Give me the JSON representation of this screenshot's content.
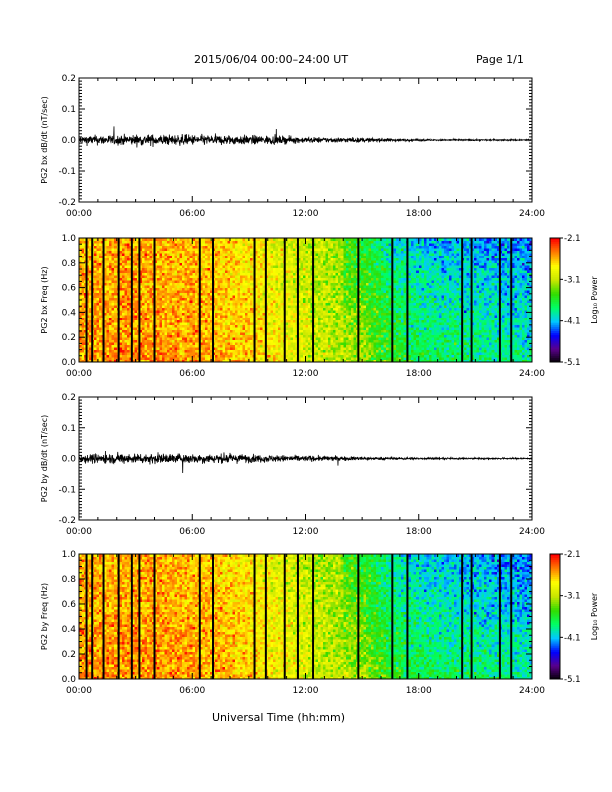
{
  "header": {
    "title": "2015/06/04  00:00–24:00 UT",
    "page": "Page 1/1"
  },
  "xlabel": "Universal Time (hh:mm)",
  "colors": {
    "trace": "#000000",
    "colormap": [
      "#000000",
      "#5a008c",
      "#0000ff",
      "#00c8ff",
      "#00ff64",
      "#32dc00",
      "#c8e600",
      "#ffff00",
      "#ff8000",
      "#ff0000"
    ]
  },
  "chart_data": [
    {
      "type": "line",
      "ylabel": "PG2 bx dB/dt (nT/sec)",
      "xlim_hours": [
        0,
        24
      ],
      "x_ticks": [
        "00:00",
        "06:00",
        "12:00",
        "18:00",
        "24:00"
      ],
      "ylim": [
        -0.2,
        0.2
      ],
      "y_ticks": [
        "-0.2",
        "-0.1",
        "0.0",
        "0.1",
        "0.2"
      ],
      "amplitude_envelope": {
        "x_hours": [
          0,
          2,
          4,
          6,
          8,
          10,
          12,
          14,
          16,
          18,
          20,
          22,
          24
        ],
        "amplitude": [
          0.025,
          0.028,
          0.03,
          0.028,
          0.027,
          0.024,
          0.016,
          0.014,
          0.01,
          0.005,
          0.004,
          0.004,
          0.004
        ]
      }
    },
    {
      "type": "heatmap",
      "ylabel": "PG2 bx Freq (Hz)",
      "xlim_hours": [
        0,
        24
      ],
      "x_ticks": [
        "00:00",
        "06:00",
        "12:00",
        "18:00",
        "24:00"
      ],
      "ylim": [
        0,
        1
      ],
      "y_ticks": [
        "0.0",
        "0.2",
        "0.4",
        "0.6",
        "0.8",
        "1.0"
      ],
      "colorbar": {
        "label": "Log₁₀ Power",
        "range": [
          -5.1,
          -2.1
        ],
        "ticks": [
          "-2.1",
          "-3.1",
          "-4.1",
          "-5.1"
        ]
      },
      "mean_log_power": {
        "x_hours": [
          0,
          3,
          6,
          9,
          11,
          13,
          15,
          16.5,
          18,
          21,
          24
        ],
        "values": [
          -2.5,
          -2.45,
          -2.5,
          -2.65,
          -2.85,
          -3.05,
          -3.15,
          -3.5,
          -3.65,
          -3.75,
          -3.85
        ]
      },
      "vertical_lines_hours": [
        0.4,
        0.7,
        1.3,
        2.1,
        2.8,
        3.2,
        4.0,
        6.4,
        7.1,
        9.3,
        9.9,
        10.9,
        11.6,
        12.4,
        14.8,
        16.6,
        17.4,
        20.3,
        20.8,
        22.3,
        22.9
      ]
    },
    {
      "type": "line",
      "ylabel": "PG2 by dB/dt (nT/sec)",
      "xlim_hours": [
        0,
        24
      ],
      "x_ticks": [
        "00:00",
        "06:00",
        "12:00",
        "18:00",
        "24:00"
      ],
      "ylim": [
        -0.2,
        0.2
      ],
      "y_ticks": [
        "-0.2",
        "-0.1",
        "0.0",
        "0.1",
        "0.2"
      ],
      "amplitude_envelope": {
        "x_hours": [
          0,
          2,
          4,
          6,
          8,
          10,
          12,
          14,
          16,
          18,
          20,
          22,
          24
        ],
        "amplitude": [
          0.025,
          0.028,
          0.028,
          0.026,
          0.025,
          0.02,
          0.016,
          0.012,
          0.008,
          0.005,
          0.004,
          0.004,
          0.004
        ]
      }
    },
    {
      "type": "heatmap",
      "ylabel": "PG2 by Freq (Hz)",
      "xlim_hours": [
        0,
        24
      ],
      "x_ticks": [
        "00:00",
        "06:00",
        "12:00",
        "18:00",
        "24:00"
      ],
      "ylim": [
        0,
        1
      ],
      "y_ticks": [
        "0.0",
        "0.2",
        "0.4",
        "0.6",
        "0.8",
        "1.0"
      ],
      "colorbar": {
        "label": "Log₁₀ Power",
        "range": [
          -5.1,
          -2.1
        ],
        "ticks": [
          "-2.1",
          "-3.1",
          "-4.1",
          "-5.1"
        ]
      },
      "mean_log_power": {
        "x_hours": [
          0,
          3,
          6,
          9,
          11,
          13,
          15,
          16.5,
          18,
          21,
          24
        ],
        "values": [
          -2.5,
          -2.45,
          -2.5,
          -2.65,
          -2.85,
          -3.05,
          -3.15,
          -3.5,
          -3.65,
          -3.75,
          -3.85
        ]
      },
      "vertical_lines_hours": [
        0.4,
        0.7,
        1.3,
        2.1,
        2.8,
        3.2,
        4.0,
        6.4,
        7.1,
        9.3,
        9.9,
        10.9,
        11.6,
        12.4,
        14.8,
        16.6,
        17.4,
        20.3,
        20.8,
        22.3,
        22.9
      ]
    }
  ]
}
